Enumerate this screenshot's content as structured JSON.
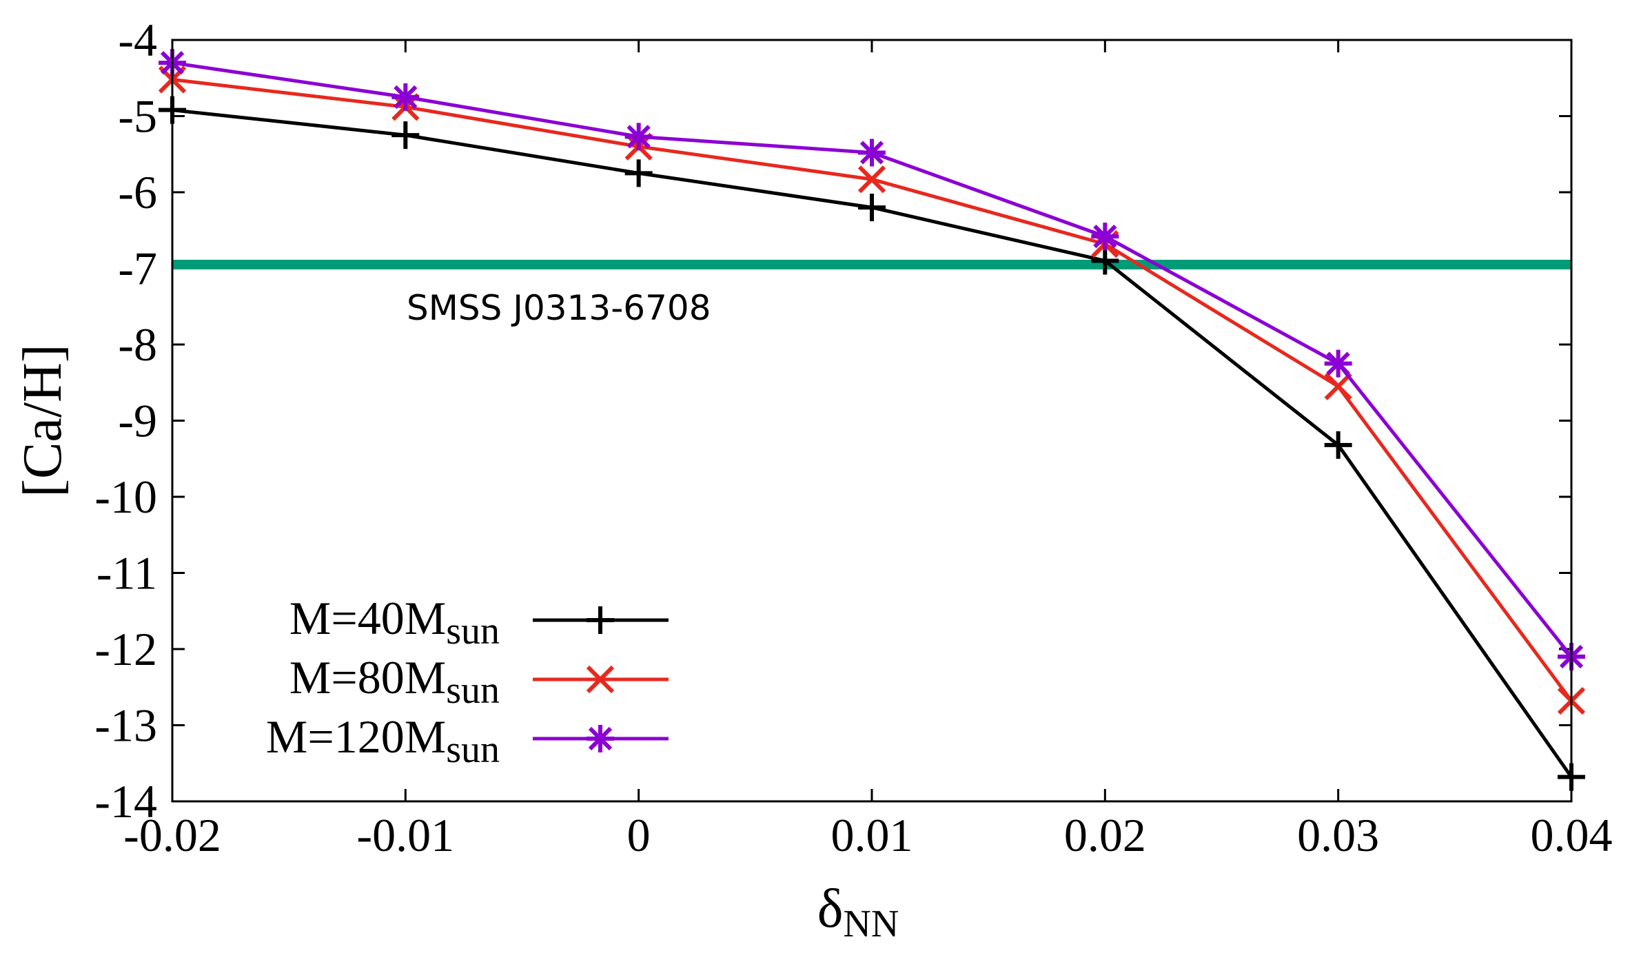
{
  "chart_data": {
    "type": "line",
    "title": "",
    "xlabel": "δ",
    "xlabel_sub": "NN",
    "ylabel": "[Ca/H]",
    "x": [
      -0.02,
      -0.01,
      0,
      0.01,
      0.02,
      0.03,
      0.04
    ],
    "xlim": [
      -0.02,
      0.04
    ],
    "ylim": [
      -14,
      -4
    ],
    "xticks": [
      -0.02,
      -0.01,
      0,
      0.01,
      0.02,
      0.03,
      0.04
    ],
    "xtick_labels": [
      "-0.02",
      "-0.01",
      "0",
      "0.01",
      "0.02",
      "0.03",
      "0.04"
    ],
    "yticks": [
      -4,
      -5,
      -6,
      -7,
      -8,
      -9,
      -10,
      -11,
      -12,
      -13,
      -14
    ],
    "ytick_labels": [
      "-4",
      "-5",
      "-6",
      "-7",
      "-8",
      "-9",
      "-10",
      "-11",
      "-12",
      "-13",
      "-14"
    ],
    "grid": false,
    "legend_position": "bottom-left",
    "series": [
      {
        "name": "M=40M",
        "name_sub": "sun",
        "color": "#000000",
        "marker": "plus",
        "values": [
          -4.92,
          -5.25,
          -5.75,
          -6.2,
          -6.9,
          -9.32,
          -13.68
        ]
      },
      {
        "name": "M=80M",
        "name_sub": "sun",
        "color": "#e8281e",
        "marker": "cross",
        "values": [
          -4.52,
          -4.88,
          -5.4,
          -5.83,
          -6.68,
          -8.55,
          -12.68
        ]
      },
      {
        "name": "M=120M",
        "name_sub": "sun",
        "color": "#8b00d4",
        "marker": "star",
        "values": [
          -4.3,
          -4.75,
          -5.27,
          -5.48,
          -6.58,
          -8.25,
          -12.1
        ]
      }
    ],
    "reference_line": {
      "label": "SMSS J0313-6708",
      "y": -6.95,
      "color": "#009b77"
    }
  }
}
